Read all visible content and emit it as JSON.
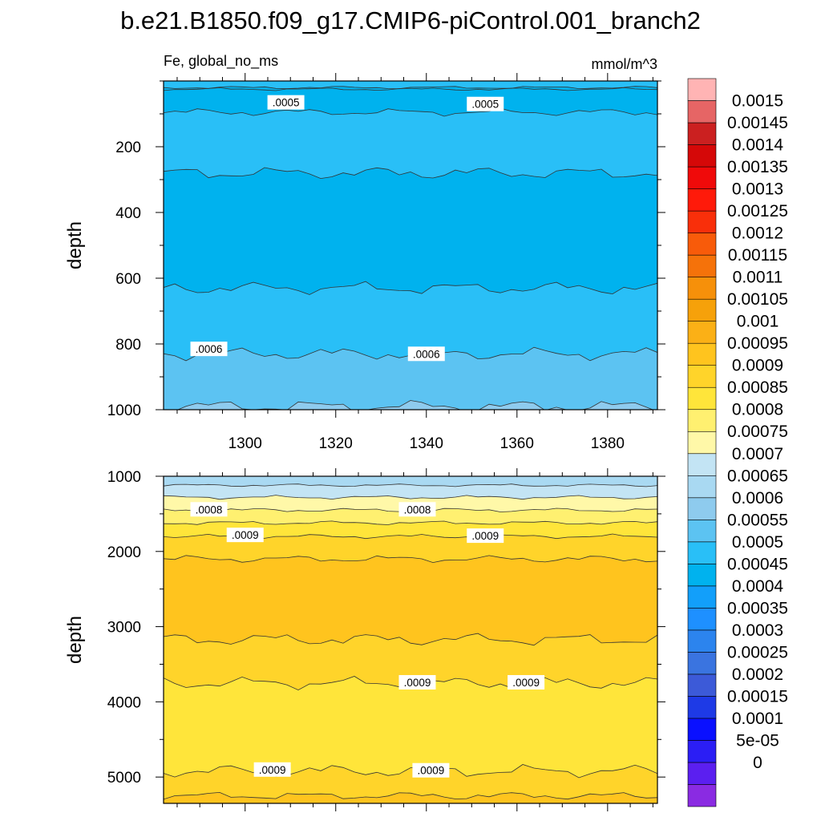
{
  "figure": {
    "title": "b.e21.B1850.f09_g17.CMIP6-piControl.001_branch2",
    "subtitle_left": "Fe, global_no_ms",
    "units": "mmol/m^3"
  },
  "colors": {
    "palette": [
      "#8a2be2",
      "#5b1ff0",
      "#2b1ef5",
      "#0a10ff",
      "#1e3ae6",
      "#3c5ad8",
      "#3a74e0",
      "#2c84ee",
      "#1e90ff",
      "#129ffa",
      "#00b2ee",
      "#29bff7",
      "#5cc3f2",
      "#8ecbee",
      "#a9d9f2",
      "#c3e4f4",
      "#fff8a8",
      "#fff070",
      "#ffe53a",
      "#ffd42a",
      "#ffc41e",
      "#fbb016",
      "#f6a10a",
      "#f6900a",
      "#f5720a",
      "#f85b0a",
      "#f92f0a",
      "#ff1a0a",
      "#f00a0a",
      "#d50808",
      "#cb2020",
      "#e66565",
      "#ffb4b4"
    ]
  },
  "chart_data": [
    {
      "type": "heatmap",
      "panel": "upper",
      "xlabel": "",
      "ylabel": "depth",
      "xlim": [
        1282,
        1391
      ],
      "ylim": [
        1000,
        0
      ],
      "x_ticks": [
        1300,
        1320,
        1340,
        1360,
        1380
      ],
      "y_ticks": [
        200,
        400,
        600,
        800,
        1000
      ],
      "depth_bands_top_to_bottom": [
        {
          "from_depth": 0,
          "to_depth": 20,
          "value_range": [
            0.0005,
            0.00055
          ]
        },
        {
          "from_depth": 20,
          "to_depth": 25,
          "value_range": [
            0.00045,
            0.0005
          ]
        },
        {
          "from_depth": 25,
          "to_depth": 95,
          "value_range": [
            0.00045,
            0.0005
          ]
        },
        {
          "from_depth": 95,
          "to_depth": 280,
          "value_range": [
            0.0005,
            0.00055
          ]
        },
        {
          "from_depth": 280,
          "to_depth": 630,
          "value_range": [
            0.00045,
            0.0005
          ]
        },
        {
          "from_depth": 630,
          "to_depth": 830,
          "value_range": [
            0.0005,
            0.00055
          ]
        },
        {
          "from_depth": 830,
          "to_depth": 990,
          "value_range": [
            0.00055,
            0.0006
          ]
        },
        {
          "from_depth": 990,
          "to_depth": 1000,
          "value_range": [
            0.0006,
            0.00065
          ]
        }
      ],
      "contour_labels": [
        {
          "text": ".0005",
          "x": 1309,
          "depth": 65
        },
        {
          "text": ".0005",
          "x": 1353,
          "depth": 70
        },
        {
          "text": ".0006",
          "x": 1292,
          "depth": 815
        },
        {
          "text": ".0006",
          "x": 1340,
          "depth": 830
        }
      ]
    },
    {
      "type": "heatmap",
      "panel": "lower",
      "xlabel": "",
      "ylabel": "depth",
      "xlim": [
        1282,
        1391
      ],
      "ylim": [
        5350,
        1000
      ],
      "x_ticks": [
        1300,
        1320,
        1340,
        1360,
        1380
      ],
      "y_ticks": [
        1000,
        2000,
        3000,
        4000,
        5000
      ],
      "depth_bands_top_to_bottom": [
        {
          "from_depth": 1000,
          "to_depth": 1120,
          "value_range": [
            0.00065,
            0.0007
          ]
        },
        {
          "from_depth": 1120,
          "to_depth": 1280,
          "value_range": [
            0.0007,
            0.00075
          ]
        },
        {
          "from_depth": 1280,
          "to_depth": 1450,
          "value_range": [
            0.00075,
            0.0008
          ]
        },
        {
          "from_depth": 1450,
          "to_depth": 1620,
          "value_range": [
            0.0008,
            0.00085
          ]
        },
        {
          "from_depth": 1620,
          "to_depth": 1800,
          "value_range": [
            0.00085,
            0.0009
          ]
        },
        {
          "from_depth": 1800,
          "to_depth": 2100,
          "value_range": [
            0.0009,
            0.00095
          ]
        },
        {
          "from_depth": 2100,
          "to_depth": 3170,
          "value_range": [
            0.00095,
            0.001
          ]
        },
        {
          "from_depth": 3170,
          "to_depth": 3750,
          "value_range": [
            0.0009,
            0.00095
          ]
        },
        {
          "from_depth": 3750,
          "to_depth": 4920,
          "value_range": [
            0.00085,
            0.0009
          ]
        },
        {
          "from_depth": 4920,
          "to_depth": 5250,
          "value_range": [
            0.0009,
            0.00095
          ]
        },
        {
          "from_depth": 5250,
          "to_depth": 5350,
          "value_range": [
            0.00095,
            0.001
          ]
        }
      ],
      "contour_labels": [
        {
          "text": ".0008",
          "x": 1292,
          "depth": 1440
        },
        {
          "text": ".0008",
          "x": 1338,
          "depth": 1440
        },
        {
          "text": ".0009",
          "x": 1300,
          "depth": 1780
        },
        {
          "text": ".0009",
          "x": 1353,
          "depth": 1790
        },
        {
          "text": ".0009",
          "x": 1338,
          "depth": 3740
        },
        {
          "text": ".0009",
          "x": 1362,
          "depth": 3740
        },
        {
          "text": ".0009",
          "x": 1306,
          "depth": 4900
        },
        {
          "text": ".0009",
          "x": 1341,
          "depth": 4910
        }
      ]
    }
  ],
  "colorbar": {
    "labels": [
      "0.0015",
      "0.00145",
      "0.0014",
      "0.00135",
      "0.0013",
      "0.00125",
      "0.0012",
      "0.00115",
      "0.0011",
      "0.00105",
      "0.001",
      "0.00095",
      "0.0009",
      "0.00085",
      "0.0008",
      "0.00075",
      "0.0007",
      "0.00065",
      "0.0006",
      "0.00055",
      "0.0005",
      "0.00045",
      "0.0004",
      "0.00035",
      "0.0003",
      "0.00025",
      "0.0002",
      "0.00015",
      "0.0001",
      "5e-05",
      "0"
    ]
  }
}
